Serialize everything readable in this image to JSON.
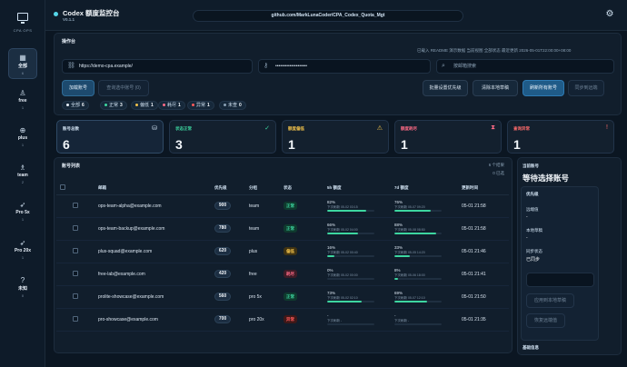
{
  "app": {
    "title": "Codex 额度监控台",
    "version": "V0.1.1",
    "repo": "github.com/MarkLunaCoder/CPA_Codex_Quota_Mgt"
  },
  "sidebar": {
    "caption": "CPA OPS",
    "items": [
      {
        "label": "全部",
        "count": "6",
        "icon": "grid-icon",
        "glyph": "▦",
        "active": true
      },
      {
        "label": "free",
        "count": "1",
        "icon": "user-icon",
        "glyph": "♙"
      },
      {
        "label": "plus",
        "count": "1",
        "icon": "plus-circle-icon",
        "glyph": "⊕"
      },
      {
        "label": "team",
        "count": "2",
        "icon": "users-icon",
        "glyph": "♗"
      },
      {
        "label": "Pro 5x",
        "count": "1",
        "icon": "rocket-icon",
        "glyph": "➶"
      },
      {
        "label": "Pro 20x",
        "count": "1",
        "icon": "rocket-icon",
        "glyph": "➶"
      },
      {
        "label": "未知",
        "count": "0",
        "icon": "help-circle-icon",
        "glyph": "?"
      }
    ]
  },
  "ops": {
    "title": "操作台",
    "info": "已载入 README 演示数据   当前视图 全部状态   最近更新 2026-05-01T22:00:00+08:00",
    "api_url": "https://demo-cpa.example/",
    "api_key": "••••••••••••••••••••",
    "search_placeholder": "按邮箱搜索",
    "buttons": {
      "load": "加载账号",
      "query_selected": "查询选中账号 (0)",
      "batch_priority": "批量设置优先级",
      "clear_local": "清除本地草稿",
      "fetch_all": "刷新所有账号",
      "sync": "同步到远端"
    },
    "chips": [
      {
        "label": "全部",
        "count": "6",
        "color": "#e6eef7"
      },
      {
        "label": "正常",
        "count": "3",
        "color": "#3dd6a0"
      },
      {
        "label": "偏低",
        "count": "1",
        "color": "#f0c14a"
      },
      {
        "label": "耗尽",
        "count": "1",
        "color": "#ff6b86"
      },
      {
        "label": "异常",
        "count": "1",
        "color": "#ff5a5a"
      },
      {
        "label": "未查",
        "count": "0",
        "color": "#8aa0b4"
      }
    ]
  },
  "stats": [
    {
      "label": "账号总数",
      "value": "6",
      "color": "#cfe0f0",
      "icon": "database-icon",
      "glyph": "⛁"
    },
    {
      "label": "状态正常",
      "value": "3",
      "color": "#3dd6a0",
      "icon": "check-circle-icon",
      "glyph": "✓"
    },
    {
      "label": "额度偏低",
      "value": "1",
      "color": "#f0c14a",
      "icon": "warning-icon",
      "glyph": "⚠"
    },
    {
      "label": "额度耗尽",
      "value": "1",
      "color": "#ff6b86",
      "icon": "hourglass-icon",
      "glyph": "⧗"
    },
    {
      "label": "查询异常",
      "value": "1",
      "color": "#ff6b6b",
      "icon": "alert-circle-icon",
      "glyph": "!"
    }
  ],
  "list": {
    "title": "账号列表",
    "total": "6 个结果",
    "selected": "0 已选",
    "headers": [
      "",
      "邮箱",
      "优先级",
      "分组",
      "状态",
      "5h 额度",
      "7d 额度",
      "更新时间"
    ],
    "rows": [
      {
        "email": "ops-team-alpha@example.com",
        "priority": "900",
        "group": "team",
        "status": "正常",
        "status_kind": "ok",
        "q5": "82%",
        "q5_fill": 82,
        "q5_reset": "下次刷新 05-02 03:15",
        "q7": "76%",
        "q7_fill": 76,
        "q7_reset": "下次刷新 05-07 09:20",
        "updated": "05-01 21:58"
      },
      {
        "email": "ops-team-backup@example.com",
        "priority": "780",
        "group": "team",
        "status": "正常",
        "status_kind": "ok",
        "q5": "66%",
        "q5_fill": 66,
        "q5_reset": "下次刷新 05-02 04:00",
        "q7": "88%",
        "q7_fill": 88,
        "q7_reset": "下次刷新 05-08 08:50",
        "updated": "05-01 21:58"
      },
      {
        "email": "plus-squad@example.com",
        "priority": "620",
        "group": "plus",
        "status": "偏低",
        "status_kind": "low",
        "q5": "16%",
        "q5_fill": 16,
        "q5_reset": "下次刷新 05-02 00:40",
        "q7": "33%",
        "q7_fill": 33,
        "q7_reset": "下次刷新 05-05 14:20",
        "updated": "05-01 21:46"
      },
      {
        "email": "free-lab@example.com",
        "priority": "420",
        "group": "free",
        "status": "耗尽",
        "status_kind": "out",
        "q5": "0%",
        "q5_fill": 0,
        "q5_reset": "下次刷新 05-02 00:00",
        "q7": "8%",
        "q7_fill": 8,
        "q7_reset": "下次刷新 05-06 18:00",
        "updated": "05-01 21:41"
      },
      {
        "email": "prolite-showcase@example.com",
        "priority": "560",
        "group": "pro 5x",
        "status": "正常",
        "status_kind": "ok",
        "q5": "73%",
        "q5_fill": 73,
        "q5_reset": "下次刷新 05-02 02:10",
        "q7": "69%",
        "q7_fill": 69,
        "q7_reset": "下次刷新 05-07 12:10",
        "updated": "05-01 21:50"
      },
      {
        "email": "pro-showcase@example.com",
        "priority": "700",
        "group": "pro 20x",
        "status": "异常",
        "status_kind": "err",
        "q5": "-",
        "q5_fill": 0,
        "q5_reset": "下次刷新 -",
        "q7": "-",
        "q7_fill": 0,
        "q7_reset": "下次刷新 -",
        "updated": "05-01 21:35"
      }
    ]
  },
  "detail": {
    "header": "当前账号",
    "title": "等待选择账号",
    "section": "优先级",
    "remote_label": "远端值",
    "remote_value": "-",
    "local_label": "本地草稿",
    "local_value": "-",
    "sync_label": "同步状态",
    "sync_value": "已同步",
    "apply_button": "应用到本地草稿",
    "restore_button": "恢复远端值",
    "basic_info": "基础信息"
  },
  "colors": {
    "ok": "#3dd6a0",
    "low": "#f0c14a",
    "out": "#ff6b86",
    "err": "#ff5a5a",
    "accent": "#55d6e8"
  }
}
